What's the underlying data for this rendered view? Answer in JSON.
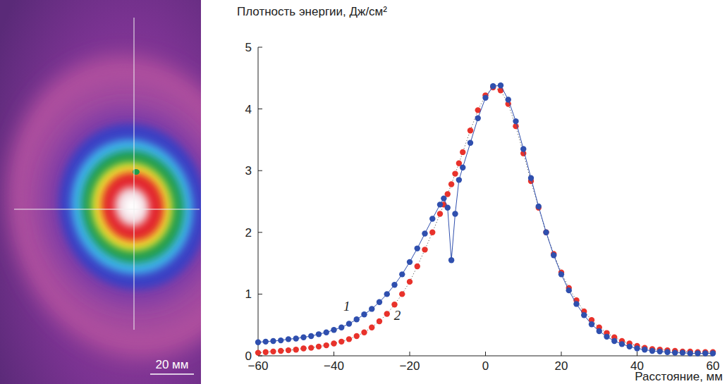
{
  "chart_data": {
    "type": "scatter",
    "y_label": "Плотность энергии, Дж/см²",
    "x_label": "Расстояние, мм",
    "x": [
      -60,
      -58,
      -56,
      -54,
      -52,
      -50,
      -48,
      -46,
      -44,
      -42,
      -40,
      -38,
      -36,
      -34,
      -32,
      -30,
      -28,
      -26,
      -24,
      -22,
      -20,
      -18,
      -16,
      -14,
      -12,
      -11,
      -10,
      -9,
      -8,
      -7,
      -6,
      -4,
      -2,
      0,
      2,
      4,
      6,
      8,
      10,
      12,
      14,
      16,
      18,
      20,
      22,
      24,
      26,
      28,
      30,
      32,
      34,
      36,
      38,
      40,
      42,
      44,
      46,
      48,
      50,
      52,
      54,
      56,
      58,
      60
    ],
    "series": [
      {
        "name": "1",
        "color": "#2f4fae",
        "marker": "circle",
        "line_style": "solid",
        "values": [
          0.22,
          0.23,
          0.24,
          0.25,
          0.27,
          0.28,
          0.3,
          0.32,
          0.35,
          0.38,
          0.42,
          0.46,
          0.52,
          0.59,
          0.67,
          0.76,
          0.87,
          1.0,
          1.15,
          1.32,
          1.52,
          1.74,
          1.98,
          2.22,
          2.45,
          2.55,
          2.4,
          1.55,
          2.3,
          2.85,
          3.05,
          3.45,
          3.85,
          4.18,
          4.37,
          4.38,
          4.15,
          3.8,
          3.35,
          2.88,
          2.42,
          2.0,
          1.63,
          1.32,
          1.06,
          0.84,
          0.66,
          0.51,
          0.4,
          0.31,
          0.24,
          0.19,
          0.15,
          0.12,
          0.1,
          0.08,
          0.07,
          0.06,
          0.05,
          0.05,
          0.04,
          0.04,
          0.04,
          0.04
        ]
      },
      {
        "name": "2",
        "color": "#e8322b",
        "marker": "circle",
        "line_style": "dotted",
        "values": [
          0.05,
          0.06,
          0.07,
          0.08,
          0.09,
          0.1,
          0.12,
          0.13,
          0.15,
          0.17,
          0.2,
          0.23,
          0.27,
          0.32,
          0.38,
          0.46,
          0.56,
          0.68,
          0.83,
          1.0,
          1.2,
          1.45,
          1.72,
          2.0,
          2.3,
          2.45,
          2.62,
          2.78,
          2.95,
          3.12,
          3.3,
          3.65,
          3.98,
          4.22,
          4.35,
          4.3,
          4.08,
          3.72,
          3.28,
          2.83,
          2.4,
          2.0,
          1.65,
          1.35,
          1.1,
          0.9,
          0.72,
          0.58,
          0.46,
          0.37,
          0.3,
          0.24,
          0.2,
          0.16,
          0.13,
          0.11,
          0.1,
          0.09,
          0.08,
          0.07,
          0.07,
          0.06,
          0.06,
          0.06
        ]
      }
    ],
    "xlim": [
      -60,
      60
    ],
    "xticks": [
      -60,
      -40,
      -20,
      0,
      20,
      40,
      60
    ],
    "ylim": [
      0,
      5
    ],
    "yticks": [
      0,
      1,
      2,
      3,
      4,
      5
    ],
    "grid": false
  },
  "image_panel": {
    "scale_bar_label": "20 мм"
  }
}
